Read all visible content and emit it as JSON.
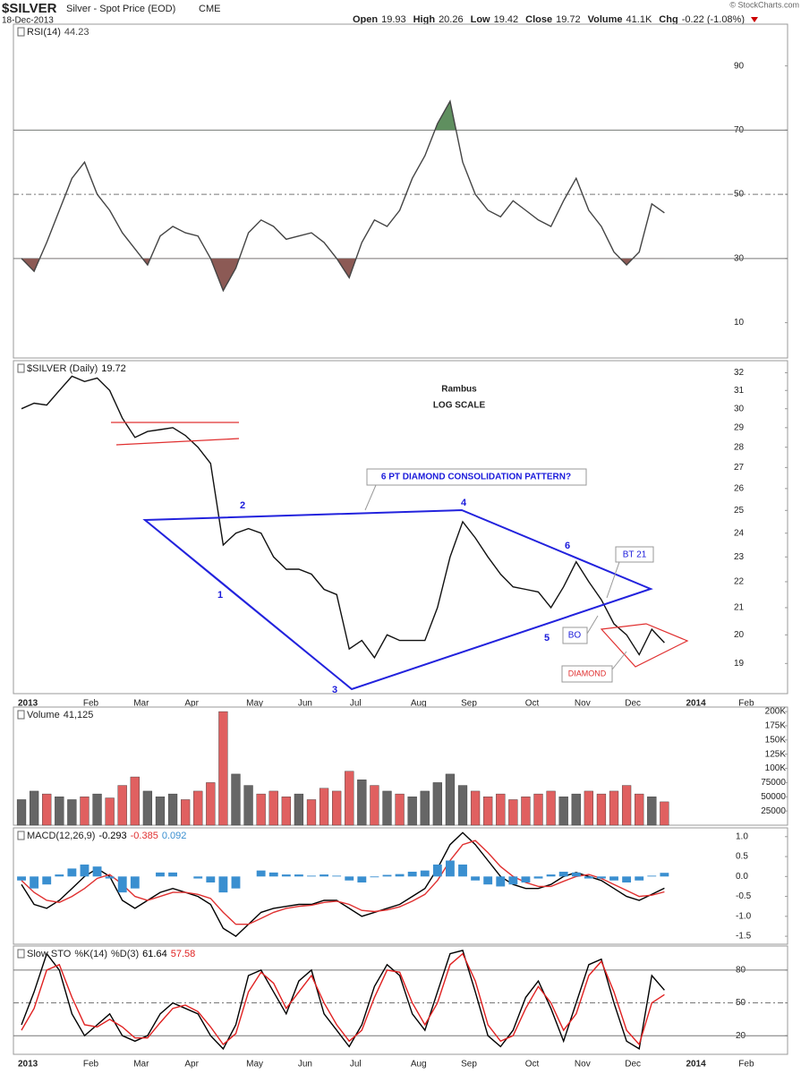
{
  "header": {
    "symbol": "$SILVER",
    "name": "Silver - Spot Price (EOD)",
    "exchange": "CME",
    "date": "18-Dec-2013",
    "copyright": "© StockCharts.com",
    "quote": [
      {
        "label": "Open",
        "value": 19.93
      },
      {
        "label": "High",
        "value": 20.26
      },
      {
        "label": "Low",
        "value": 19.42
      },
      {
        "label": "Close",
        "value": 19.72
      },
      {
        "label": "Volume",
        "value": "41.1K"
      },
      {
        "label": "Chg",
        "value": "-0.22 (-1.08%)"
      }
    ]
  },
  "chart_data": [
    {
      "type": "line",
      "ylim": [
        -1,
        103
      ],
      "yticks": [
        10,
        30,
        50,
        70,
        90
      ],
      "grid": false,
      "oversold": 30,
      "midline": 50,
      "overbought": 70,
      "overbought_fill": "#5f8f5f",
      "oversold_fill": "#8c5a55",
      "series": [
        {
          "name": "RSI(14)",
          "color": "#444444",
          "values": [
            30,
            26,
            35,
            45,
            55,
            60,
            50,
            45,
            38,
            33,
            28,
            37,
            40,
            38,
            37,
            30,
            20,
            27,
            38,
            42,
            40,
            36,
            37,
            38,
            35,
            30,
            24,
            35,
            42,
            40,
            45,
            55,
            62,
            72,
            79,
            60,
            50,
            45,
            43,
            48,
            45,
            42,
            40,
            48,
            55,
            45,
            40,
            32,
            28,
            32,
            47,
            44.23
          ]
        }
      ]
    },
    {
      "type": "line",
      "log": true,
      "ylim": [
        18,
        32.7
      ],
      "yticks": [
        19,
        20,
        21,
        22,
        23,
        24,
        25,
        26,
        27,
        28,
        29,
        30,
        31,
        32
      ],
      "grid": false,
      "categories": [
        null,
        "2013",
        null,
        null,
        null,
        null,
        "Feb",
        null,
        null,
        null,
        "Mar",
        null,
        null,
        null,
        "Apr",
        null,
        null,
        null,
        null,
        "May",
        null,
        null,
        null,
        "Jun",
        null,
        null,
        null,
        "Jul",
        null,
        null,
        null,
        null,
        "Aug",
        null,
        null,
        null,
        "Sep",
        null,
        null,
        null,
        null,
        "Oct",
        null,
        null,
        null,
        "Nov",
        null,
        null,
        null,
        "Dec",
        null,
        null,
        null,
        null,
        "2014",
        null,
        null,
        null,
        "Feb"
      ],
      "series": [
        {
          "name": "$SILVER (Daily)",
          "color": "#111111",
          "values": [
            30,
            30.3,
            30.2,
            31,
            31.8,
            31.5,
            31.7,
            31,
            29.5,
            28.5,
            28.8,
            28.9,
            29,
            28.6,
            28,
            27.2,
            23.5,
            24,
            24.2,
            24,
            23,
            22.5,
            22.5,
            22.3,
            21.7,
            21.5,
            19.5,
            19.8,
            19.2,
            20,
            19.8,
            19.8,
            19.8,
            21,
            23,
            24.5,
            23.8,
            23,
            22.3,
            21.8,
            21.7,
            21.6,
            21,
            21.8,
            22.8,
            22,
            21.3,
            20.4,
            20,
            19.3,
            20.2,
            19.72,
            null,
            null,
            null,
            null,
            null,
            null,
            null
          ]
        }
      ],
      "annotations": [
        "Rambus",
        "LOG SCALE",
        "6 PT DIAMOND CONSOLIDATION PATTERN?",
        "BT 21",
        "BO",
        "DIAMOND",
        "1",
        "2",
        "3",
        "4",
        "5",
        "6"
      ]
    },
    {
      "type": "bar",
      "ylim": [
        0,
        208000
      ],
      "yticks": [
        25000,
        50000,
        75000,
        {
          "value": 100000,
          "label": "100K"
        },
        {
          "value": 125000,
          "label": "125K"
        },
        {
          "value": 150000,
          "label": "150K"
        },
        {
          "value": 175000,
          "label": "175K"
        },
        {
          "value": 200000,
          "label": "200K"
        }
      ],
      "grid": false,
      "up_color": "#666666",
      "down_color": "#e06060",
      "series": [
        {
          "name": "Volume",
          "values": [
            45000,
            60000,
            55000,
            50000,
            45000,
            50000,
            55000,
            48000,
            70000,
            85000,
            60000,
            50000,
            55000,
            45000,
            60000,
            75000,
            200000,
            90000,
            70000,
            55000,
            60000,
            50000,
            55000,
            45000,
            65000,
            60000,
            95000,
            80000,
            70000,
            60000,
            55000,
            50000,
            60000,
            75000,
            90000,
            70000,
            60000,
            50000,
            55000,
            45000,
            50000,
            55000,
            60000,
            50000,
            55000,
            60000,
            55000,
            60000,
            70000,
            55000,
            50000,
            41125
          ],
          "value_labels": {
            "51": "41,125"
          }
        }
      ]
    },
    {
      "type": "line",
      "name": "MACD(12,26,9)",
      "ylim": [
        -1.7,
        1.22
      ],
      "yticks": [
        {
          "value": 1,
          "label": "1.0"
        },
        0.5,
        {
          "value": 0,
          "label": "0.0"
        },
        -0.5,
        {
          "value": -1,
          "label": "-1.0"
        },
        -1.5
      ],
      "grid": false,
      "series": [
        {
          "color": "#000000",
          "values": [
            -0.2,
            -0.7,
            -0.8,
            -0.6,
            -0.3,
            0.0,
            0.2,
            0.0,
            -0.6,
            -0.8,
            -0.6,
            -0.4,
            -0.3,
            -0.4,
            -0.5,
            -0.7,
            -1.3,
            -1.5,
            -1.2,
            -0.9,
            -0.8,
            -0.75,
            -0.7,
            -0.7,
            -0.6,
            -0.6,
            -0.8,
            -1.0,
            -0.9,
            -0.8,
            -0.7,
            -0.5,
            -0.3,
            0.2,
            0.8,
            1.1,
            0.8,
            0.4,
            0.0,
            -0.2,
            -0.3,
            -0.3,
            -0.2,
            0.0,
            0.1,
            0.0,
            -0.1,
            -0.3,
            -0.5,
            -0.6,
            -0.45,
            -0.293
          ]
        },
        {
          "color": "#e03030",
          "values": [
            -0.1,
            -0.4,
            -0.6,
            -0.65,
            -0.5,
            -0.3,
            -0.05,
            0.05,
            -0.2,
            -0.5,
            -0.6,
            -0.5,
            -0.4,
            -0.4,
            -0.45,
            -0.55,
            -0.9,
            -1.2,
            -1.2,
            -1.05,
            -0.9,
            -0.8,
            -0.75,
            -0.72,
            -0.65,
            -0.62,
            -0.7,
            -0.85,
            -0.88,
            -0.84,
            -0.76,
            -0.62,
            -0.45,
            -0.1,
            0.4,
            0.8,
            0.9,
            0.6,
            0.25,
            0.0,
            -0.15,
            -0.25,
            -0.25,
            -0.12,
            0.0,
            0.05,
            -0.05,
            -0.2,
            -0.35,
            -0.5,
            -0.47,
            -0.385
          ]
        },
        {
          "type": "bar",
          "color": "#3a8fd0",
          "values": [
            -0.1,
            -0.3,
            -0.2,
            0.05,
            0.2,
            0.3,
            0.25,
            -0.05,
            -0.4,
            -0.3,
            0.0,
            0.1,
            0.1,
            0.0,
            -0.05,
            -0.15,
            -0.4,
            -0.3,
            0.0,
            0.15,
            0.1,
            0.05,
            0.05,
            0.02,
            0.05,
            0.02,
            -0.1,
            -0.15,
            -0.02,
            0.04,
            0.06,
            0.12,
            0.15,
            0.3,
            0.4,
            0.3,
            -0.1,
            -0.2,
            -0.25,
            -0.2,
            -0.15,
            -0.05,
            0.05,
            0.12,
            0.1,
            -0.05,
            -0.05,
            -0.1,
            -0.15,
            -0.1,
            0.02,
            0.092
          ]
        }
      ]
    },
    {
      "type": "line",
      "name": "Slow STO",
      "ylim": [
        3,
        102
      ],
      "yticks": [
        20,
        50,
        80
      ],
      "grid": false,
      "oversold": 20,
      "midline": 50,
      "overbought": 80,
      "categories": [
        null,
        "2013",
        null,
        null,
        null,
        null,
        "Feb",
        null,
        null,
        null,
        "Mar",
        null,
        null,
        null,
        "Apr",
        null,
        null,
        null,
        null,
        "May",
        null,
        null,
        null,
        "Jun",
        null,
        null,
        null,
        "Jul",
        null,
        null,
        null,
        null,
        "Aug",
        null,
        null,
        null,
        "Sep",
        null,
        null,
        null,
        null,
        "Oct",
        null,
        null,
        null,
        "Nov",
        null,
        null,
        null,
        "Dec",
        null,
        null,
        null,
        null,
        "2014",
        null,
        null,
        null,
        "Feb"
      ],
      "series": [
        {
          "name": "%K(14)",
          "color": "#000000",
          "values": [
            30,
            60,
            95,
            80,
            40,
            20,
            30,
            40,
            20,
            15,
            20,
            40,
            50,
            45,
            40,
            20,
            8,
            30,
            75,
            80,
            60,
            40,
            70,
            80,
            40,
            25,
            10,
            30,
            65,
            85,
            75,
            40,
            25,
            60,
            95,
            98,
            60,
            20,
            10,
            25,
            55,
            70,
            45,
            15,
            50,
            85,
            90,
            50,
            15,
            8,
            75,
            61.64,
            null,
            null,
            null,
            null,
            null,
            null,
            null
          ]
        },
        {
          "name": "%D(3)",
          "color": "#e02020",
          "values": [
            25,
            45,
            80,
            85,
            55,
            30,
            28,
            35,
            28,
            18,
            18,
            32,
            45,
            48,
            42,
            28,
            12,
            22,
            60,
            78,
            68,
            45,
            60,
            75,
            50,
            30,
            15,
            25,
            55,
            80,
            78,
            50,
            30,
            50,
            85,
            95,
            70,
            30,
            15,
            20,
            45,
            65,
            50,
            25,
            40,
            75,
            88,
            60,
            25,
            12,
            50,
            57.58,
            null,
            null,
            null,
            null,
            null,
            null,
            null
          ]
        }
      ]
    }
  ]
}
